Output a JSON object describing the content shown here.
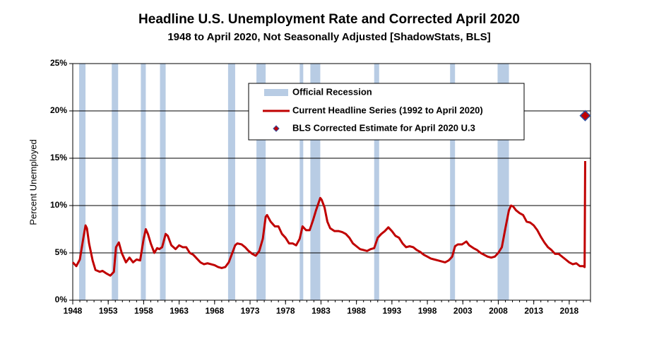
{
  "chart_data": {
    "type": "line",
    "title": "Headline U.S. Unemployment Rate and Corrected April 2020",
    "subtitle": "1948 to April 2020, Not Seasonally Adjusted  [ShadowStats, BLS]",
    "y_label": "Percent Unemployed",
    "xlim": [
      1948,
      2021
    ],
    "ylim": [
      0,
      25
    ],
    "xticks": [
      1948,
      1953,
      1958,
      1963,
      1968,
      1973,
      1978,
      1983,
      1988,
      1993,
      1998,
      2003,
      2008,
      2013,
      2018
    ],
    "yticks": [
      {
        "value": 0,
        "label": "0%"
      },
      {
        "value": 5,
        "label": "5%"
      },
      {
        "value": 10,
        "label": "10%"
      },
      {
        "value": 15,
        "label": "15%"
      },
      {
        "value": 20,
        "label": "20%"
      },
      {
        "value": 25,
        "label": "25%"
      }
    ],
    "grid": true,
    "recessions": {
      "name": "Official Recession",
      "color": "#b8cce4",
      "spans": [
        [
          1948.9,
          1949.8
        ],
        [
          1953.5,
          1954.4
        ],
        [
          1957.6,
          1958.3
        ],
        [
          1960.3,
          1961.1
        ],
        [
          1969.9,
          1970.9
        ],
        [
          1973.9,
          1975.2
        ],
        [
          1980.0,
          1980.5
        ],
        [
          1981.5,
          1982.9
        ],
        [
          1990.5,
          1991.2
        ],
        [
          2001.2,
          2001.9
        ],
        [
          2007.9,
          2009.5
        ]
      ]
    },
    "x": [
      1948.0,
      1948.5,
      1949.0,
      1949.5,
      1949.8,
      1950.0,
      1950.3,
      1950.8,
      1951.2,
      1951.8,
      1952.2,
      1952.8,
      1953.3,
      1953.8,
      1954.1,
      1954.5,
      1954.9,
      1955.5,
      1956.0,
      1956.5,
      1957.0,
      1957.5,
      1958.0,
      1958.3,
      1958.6,
      1959.0,
      1959.5,
      1959.9,
      1960.2,
      1960.6,
      1961.1,
      1961.4,
      1961.9,
      1962.5,
      1963.0,
      1963.5,
      1964.0,
      1964.5,
      1965.0,
      1965.5,
      1966.0,
      1966.5,
      1967.0,
      1967.5,
      1968.0,
      1968.5,
      1969.0,
      1969.5,
      1970.0,
      1970.5,
      1970.9,
      1971.2,
      1971.8,
      1972.3,
      1972.8,
      1973.3,
      1973.8,
      1974.3,
      1974.8,
      1975.2,
      1975.4,
      1975.9,
      1976.5,
      1977.0,
      1977.5,
      1978.0,
      1978.5,
      1979.0,
      1979.5,
      1980.0,
      1980.4,
      1980.9,
      1981.4,
      1981.9,
      1982.3,
      1982.9,
      1983.1,
      1983.5,
      1983.9,
      1984.3,
      1984.9,
      1985.5,
      1986.0,
      1986.5,
      1987.0,
      1987.5,
      1988.0,
      1988.5,
      1989.0,
      1989.5,
      1990.0,
      1990.5,
      1991.0,
      1991.5,
      1992.0,
      1992.5,
      1993.0,
      1993.5,
      1994.0,
      1994.5,
      1995.0,
      1995.5,
      1996.0,
      1996.5,
      1997.0,
      1997.5,
      1998.0,
      1998.5,
      1999.0,
      1999.5,
      2000.0,
      2000.5,
      2001.0,
      2001.5,
      2001.9,
      2002.3,
      2002.9,
      2003.5,
      2003.9,
      2004.5,
      2005.0,
      2005.5,
      2006.0,
      2006.5,
      2007.0,
      2007.5,
      2008.0,
      2008.5,
      2009.0,
      2009.5,
      2009.8,
      2010.1,
      2010.5,
      2011.0,
      2011.5,
      2012.0,
      2012.5,
      2013.0,
      2013.5,
      2014.0,
      2014.5,
      2015.0,
      2015.5,
      2016.0,
      2016.5,
      2017.0,
      2017.5,
      2018.0,
      2018.5,
      2019.0,
      2019.5,
      2020.0,
      2020.17,
      2020.25
    ],
    "series": [
      {
        "name": "Current Headline Series (1992 to April 2020)",
        "color": "#c00000",
        "values": [
          4.0,
          3.6,
          4.3,
          6.6,
          7.9,
          7.6,
          6.0,
          4.2,
          3.2,
          3.0,
          3.1,
          2.8,
          2.6,
          3.0,
          5.6,
          6.1,
          5.0,
          4.0,
          4.5,
          4.0,
          4.3,
          4.2,
          6.5,
          7.5,
          7.0,
          6.0,
          5.0,
          5.5,
          5.4,
          5.6,
          7.0,
          6.8,
          5.8,
          5.4,
          5.8,
          5.6,
          5.6,
          5.0,
          4.8,
          4.4,
          4.0,
          3.8,
          3.9,
          3.8,
          3.7,
          3.5,
          3.4,
          3.5,
          4.0,
          5.0,
          5.8,
          6.0,
          5.9,
          5.6,
          5.2,
          4.9,
          4.7,
          5.2,
          6.5,
          8.8,
          9.0,
          8.3,
          7.8,
          7.8,
          7.0,
          6.6,
          6.0,
          6.0,
          5.8,
          6.5,
          7.8,
          7.4,
          7.4,
          8.5,
          9.5,
          10.8,
          10.6,
          9.8,
          8.3,
          7.6,
          7.3,
          7.3,
          7.2,
          7.0,
          6.6,
          6.0,
          5.7,
          5.4,
          5.3,
          5.2,
          5.4,
          5.5,
          6.6,
          7.0,
          7.3,
          7.7,
          7.3,
          6.8,
          6.6,
          6.0,
          5.6,
          5.7,
          5.6,
          5.3,
          5.1,
          4.8,
          4.6,
          4.4,
          4.3,
          4.2,
          4.1,
          4.0,
          4.2,
          4.6,
          5.7,
          5.9,
          5.9,
          6.2,
          5.8,
          5.5,
          5.3,
          5.0,
          4.8,
          4.6,
          4.5,
          4.6,
          5.0,
          5.6,
          7.6,
          9.5,
          10.0,
          9.9,
          9.5,
          9.2,
          9.0,
          8.3,
          8.2,
          7.9,
          7.4,
          6.7,
          6.1,
          5.6,
          5.3,
          4.9,
          4.9,
          4.6,
          4.3,
          4.0,
          3.8,
          3.9,
          3.6,
          3.6,
          3.5,
          14.7
        ]
      }
    ],
    "estimate": {
      "name": "BLS Corrected Estimate for April 2020 U.3",
      "color": "#c00000",
      "edge": "#3050a0",
      "x": 2020.25,
      "value": 19.5
    }
  }
}
